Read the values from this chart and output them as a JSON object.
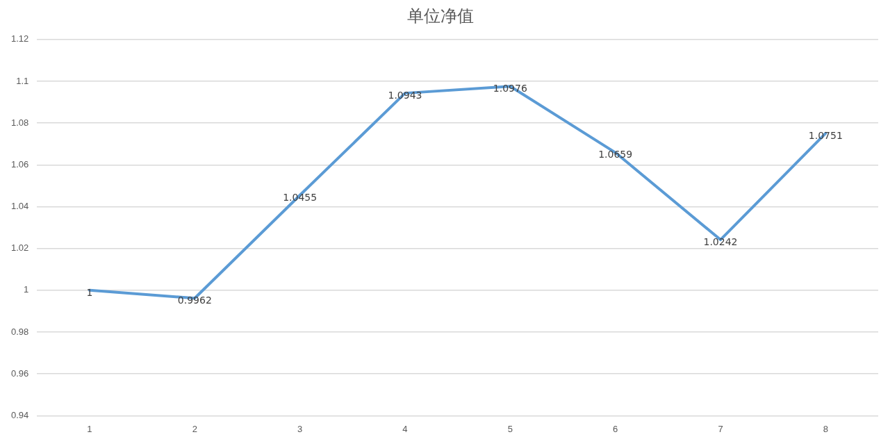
{
  "chart_data": {
    "type": "line",
    "title": "单位净值",
    "categories": [
      "1",
      "2",
      "3",
      "4",
      "5",
      "6",
      "7",
      "8"
    ],
    "series": [
      {
        "color": "#5b9bd5",
        "values": [
          1,
          0.9962,
          1.0455,
          1.0943,
          1.0976,
          1.0659,
          1.0242,
          1.0751
        ]
      }
    ],
    "ylim": [
      0.94,
      1.12
    ],
    "yticks": [
      0.94,
      0.96,
      0.98,
      1,
      1.02,
      1.04,
      1.06,
      1.08,
      1.1,
      1.12
    ],
    "grid": "y",
    "legend": false,
    "marker": "none",
    "line_style": "solid",
    "data_labels": true
  }
}
